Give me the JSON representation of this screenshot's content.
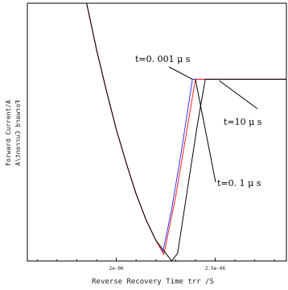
{
  "chart_data": {
    "type": "line",
    "title": "",
    "xlabel": "Reverse Recovery Time trr /S",
    "ylabel": "Forward Current/A",
    "ylabel_mirrored": "Forward Current/A",
    "x_tick_labels": [
      "2e-06",
      "2.5e-06"
    ],
    "x_ticks": [
      2e-06,
      2.5e-06
    ],
    "xlim": [
      1.55e-06,
      2.86e-06
    ],
    "ylim": [
      0,
      1
    ],
    "grid": false,
    "y_values_note": "",
    "series": [
      {
        "name": "t=0.001 μ s",
        "color": "#3333ff",
        "points": [
          [
            1.85e-06,
            1.0
          ],
          [
            1.9e-06,
            0.82
          ],
          [
            1.95e-06,
            0.66
          ],
          [
            2e-06,
            0.51
          ],
          [
            2.05e-06,
            0.38
          ],
          [
            2.1e-06,
            0.26
          ],
          [
            2.15e-06,
            0.16
          ],
          [
            2.2e-06,
            0.08
          ],
          [
            2.235e-06,
            0.035
          ],
          [
            2.28e-06,
            0.2
          ],
          [
            2.33e-06,
            0.43
          ],
          [
            2.385e-06,
            0.705
          ],
          [
            2.45e-06,
            0.705
          ],
          [
            2.55e-06,
            0.705
          ],
          [
            2.7e-06,
            0.705
          ],
          [
            2.86e-06,
            0.705
          ]
        ]
      },
      {
        "name": "t=0.1 μ s",
        "color": "#ff2222",
        "points": [
          [
            1.85e-06,
            1.0
          ],
          [
            1.9e-06,
            0.82
          ],
          [
            1.95e-06,
            0.66
          ],
          [
            2e-06,
            0.51
          ],
          [
            2.05e-06,
            0.38
          ],
          [
            2.1e-06,
            0.26
          ],
          [
            2.15e-06,
            0.16
          ],
          [
            2.2e-06,
            0.08
          ],
          [
            2.24e-06,
            0.025
          ],
          [
            2.3e-06,
            0.25
          ],
          [
            2.355e-06,
            0.5
          ],
          [
            2.4e-06,
            0.705
          ],
          [
            2.45e-06,
            0.705
          ],
          [
            2.55e-06,
            0.705
          ],
          [
            2.7e-06,
            0.705
          ],
          [
            2.86e-06,
            0.705
          ]
        ]
      },
      {
        "name": "t=10 μ s",
        "color": "#000000",
        "points": [
          [
            1.85e-06,
            1.0
          ],
          [
            1.9e-06,
            0.82
          ],
          [
            1.95e-06,
            0.66
          ],
          [
            2e-06,
            0.51
          ],
          [
            2.05e-06,
            0.38
          ],
          [
            2.1e-06,
            0.26
          ],
          [
            2.15e-06,
            0.16
          ],
          [
            2.2e-06,
            0.08
          ],
          [
            2.25e-06,
            0.03
          ],
          [
            2.28e-06,
            0.0
          ],
          [
            2.31e-06,
            0.03
          ],
          [
            2.36e-06,
            0.28
          ],
          [
            2.41e-06,
            0.53
          ],
          [
            2.45e-06,
            0.705
          ],
          [
            2.55e-06,
            0.705
          ],
          [
            2.7e-06,
            0.705
          ],
          [
            2.86e-06,
            0.705
          ]
        ]
      }
    ],
    "annotations": [
      {
        "text": "t=0. 001 μ s",
        "series": "t=0.001 μ s"
      },
      {
        "text": "t=10 μ s",
        "series": "t=10 μ s"
      },
      {
        "text": "t=0. 1 μ s",
        "series": "t=0.1 μ s"
      }
    ]
  }
}
